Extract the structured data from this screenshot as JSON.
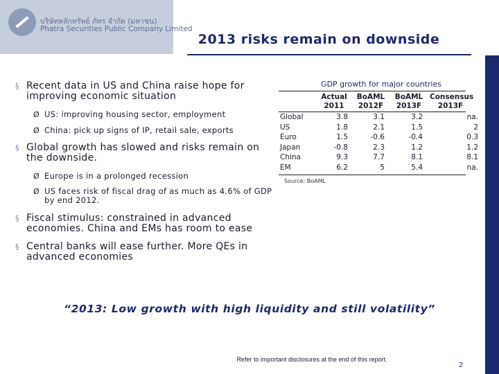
{
  "header": {
    "company_thai": "บริษัทหลักทรัพย์ ภัทร จำกัด (มหาชน)",
    "company_en": "Phatra Securities Public Company Limited",
    "title": "2013 risks remain on downside"
  },
  "bullets": [
    {
      "text": "Recent data in US and China raise hope for improving economic situation",
      "sub": [
        "US: improving housing sector, employment",
        "China: pick up signs of IP, retail sale, exports"
      ]
    },
    {
      "text": "Global growth has slowed and risks remain on the downside.",
      "sub": [
        "Europe is in a prolonged recession",
        "US faces risk of fiscal drag of as much as 4.6% of GDP by end 2012."
      ]
    },
    {
      "text": "Fiscal stimulus: constrained in advanced economies. China and EMs has room to ease",
      "sub": []
    },
    {
      "text": "Central banks will ease further. More QEs in advanced economies",
      "sub": []
    }
  ],
  "table": {
    "title": "GDP growth for major countries",
    "columns": [
      [
        "Actual",
        "2011"
      ],
      [
        "BoAML",
        "2012F"
      ],
      [
        "BoAML",
        "2013F"
      ],
      [
        "Consensus",
        "2013F"
      ]
    ],
    "rows": [
      [
        "Global",
        3.8,
        3.1,
        3.2,
        "na."
      ],
      [
        "US",
        1.8,
        2.1,
        1.5,
        2
      ],
      [
        "Euro",
        1.5,
        -0.6,
        -0.4,
        0.3
      ],
      [
        "Japan",
        -0.8,
        2.3,
        1.2,
        1.2
      ],
      [
        "China",
        9.3,
        7.7,
        8.1,
        8.1
      ],
      [
        "EM",
        6.2,
        5,
        5.4,
        "na."
      ]
    ],
    "source": "Source: BoAML"
  },
  "quote": "“2013: Low growth with high liquidity and still volatility”",
  "footer": {
    "disclaimer": "Refer to important disclosures at the end of this report.",
    "page": "2"
  }
}
